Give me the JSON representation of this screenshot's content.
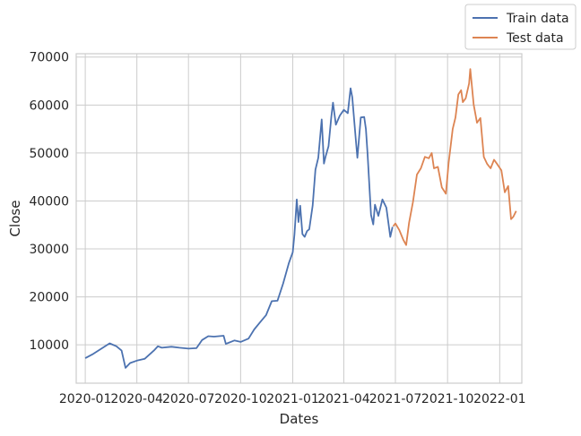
{
  "chart_data": {
    "type": "line",
    "title": "",
    "xlabel": "Dates",
    "ylabel": "Close",
    "grid": true,
    "legend_position": "top-right (outside plot)",
    "x_ticks": [
      "2020-01",
      "2020-04",
      "2020-07",
      "2020-10",
      "2021-01",
      "2021-04",
      "2021-07",
      "2021-10",
      "2022-01"
    ],
    "y_ticks": [
      10000,
      20000,
      30000,
      40000,
      50000,
      60000,
      70000
    ],
    "xlim": [
      "2019-12-16",
      "2022-02-09"
    ],
    "ylim": [
      2000,
      70700
    ],
    "series": [
      {
        "name": "Train data",
        "color": "#4c72b0",
        "x": [
          "2020-01-01",
          "2020-01-15",
          "2020-02-01",
          "2020-02-13",
          "2020-02-25",
          "2020-03-05",
          "2020-03-12",
          "2020-03-20",
          "2020-04-01",
          "2020-04-15",
          "2020-05-01",
          "2020-05-08",
          "2020-05-15",
          "2020-06-01",
          "2020-06-15",
          "2020-07-01",
          "2020-07-15",
          "2020-07-25",
          "2020-08-05",
          "2020-08-15",
          "2020-09-01",
          "2020-09-05",
          "2020-09-20",
          "2020-10-01",
          "2020-10-15",
          "2020-10-25",
          "2020-11-05",
          "2020-11-15",
          "2020-11-25",
          "2020-12-05",
          "2020-12-15",
          "2020-12-25",
          "2021-01-01",
          "2021-01-04",
          "2021-01-08",
          "2021-01-11",
          "2021-01-14",
          "2021-01-18",
          "2021-01-22",
          "2021-01-26",
          "2021-01-30",
          "2021-02-05",
          "2021-02-10",
          "2021-02-15",
          "2021-02-21",
          "2021-02-25",
          "2021-02-28",
          "2021-03-05",
          "2021-03-10",
          "2021-03-13",
          "2021-03-18",
          "2021-03-25",
          "2021-04-01",
          "2021-04-08",
          "2021-04-13",
          "2021-04-16",
          "2021-04-22",
          "2021-04-25",
          "2021-05-01",
          "2021-05-07",
          "2021-05-10",
          "2021-05-13",
          "2021-05-19",
          "2021-05-23",
          "2021-05-26",
          "2021-06-01",
          "2021-06-08",
          "2021-06-15",
          "2021-06-22",
          "2021-06-26"
        ],
        "values": [
          7200,
          8100,
          9400,
          10300,
          9700,
          8800,
          5200,
          6200,
          6700,
          7100,
          8800,
          9700,
          9400,
          9600,
          9400,
          9200,
          9300,
          11000,
          11800,
          11700,
          11900,
          10200,
          10900,
          10600,
          11300,
          13200,
          14800,
          16200,
          19100,
          19200,
          22800,
          27000,
          29300,
          33000,
          40300,
          35600,
          39000,
          33100,
          32500,
          33700,
          34100,
          39000,
          46500,
          49000,
          57000,
          47800,
          49300,
          51400,
          57500,
          60500,
          55900,
          57800,
          59000,
          58300,
          63500,
          61600,
          53100,
          49000,
          57400,
          57500,
          55000,
          49700,
          37100,
          35100,
          39200,
          36900,
          40300,
          38600,
          32500,
          34600
        ]
      },
      {
        "name": "Test data",
        "color": "#dd8452",
        "x": [
          "2021-06-27",
          "2021-07-01",
          "2021-07-08",
          "2021-07-15",
          "2021-07-20",
          "2021-07-25",
          "2021-08-01",
          "2021-08-08",
          "2021-08-15",
          "2021-08-22",
          "2021-08-29",
          "2021-09-03",
          "2021-09-07",
          "2021-09-14",
          "2021-09-21",
          "2021-09-28",
          "2021-10-03",
          "2021-10-10",
          "2021-10-15",
          "2021-10-20",
          "2021-10-25",
          "2021-10-28",
          "2021-11-02",
          "2021-11-08",
          "2021-11-10",
          "2021-11-16",
          "2021-11-22",
          "2021-11-28",
          "2021-12-04",
          "2021-12-10",
          "2021-12-16",
          "2021-12-22",
          "2021-12-28",
          "2022-01-04",
          "2022-01-10",
          "2022-01-16",
          "2022-01-21",
          "2022-01-25",
          "2022-01-30"
        ],
        "values": [
          34700,
          35300,
          33900,
          31900,
          30800,
          35400,
          39800,
          45500,
          46800,
          49200,
          48900,
          50000,
          46800,
          47100,
          42800,
          41500,
          48000,
          55000,
          57400,
          62200,
          63100,
          60600,
          61400,
          64500,
          67500,
          60100,
          56300,
          57300,
          49200,
          47700,
          46800,
          48600,
          47600,
          46400,
          41800,
          43100,
          36200,
          36700,
          37900
        ]
      }
    ]
  }
}
